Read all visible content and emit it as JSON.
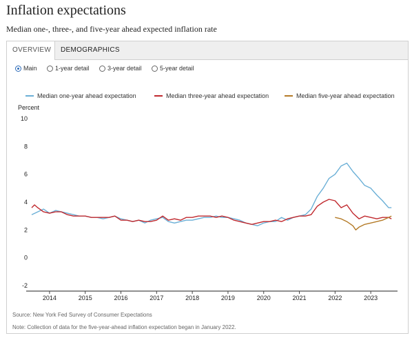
{
  "header": {
    "title": "Inflation expectations",
    "subtitle": "Median one-, three-, and five-year ahead expected inflation rate"
  },
  "tabs": [
    {
      "label": "OVERVIEW",
      "active": true
    },
    {
      "label": "DEMOGRAPHICS",
      "active": false
    }
  ],
  "radios": [
    {
      "label": "Main",
      "selected": true
    },
    {
      "label": "1-year detail",
      "selected": false
    },
    {
      "label": "3-year detail",
      "selected": false
    },
    {
      "label": "5-year detail",
      "selected": false
    }
  ],
  "colors": {
    "one_year": "#6aafd6",
    "three_year": "#c0282d",
    "five_year": "#b47a26",
    "zero_line": "#222222",
    "tab_accent": "#2a6ab8"
  },
  "footer": {
    "source": "Source: New York Fed Survey of Consumer Expectations",
    "note": "Note: Collection of data for the five-year-ahead inflation expectation began in January 2022."
  },
  "chart_data": {
    "type": "line",
    "ylabel": "Percent",
    "ylim": [
      -2,
      10
    ],
    "yticks": [
      -2,
      0,
      2,
      4,
      6,
      8,
      10
    ],
    "xlim": [
      2013.5,
      2023.75
    ],
    "xticks": [
      2014,
      2015,
      2016,
      2017,
      2018,
      2019,
      2020,
      2021,
      2022,
      2023
    ],
    "grid": false,
    "legend_position": "top",
    "series": [
      {
        "name": "Median one-year ahead expectation",
        "color_key": "one_year",
        "points": [
          [
            2013.5,
            3.1
          ],
          [
            2013.67,
            3.3
          ],
          [
            2013.83,
            3.5
          ],
          [
            2014.0,
            3.2
          ],
          [
            2014.17,
            3.4
          ],
          [
            2014.33,
            3.3
          ],
          [
            2014.5,
            3.2
          ],
          [
            2014.67,
            3.1
          ],
          [
            2014.83,
            3.0
          ],
          [
            2015.0,
            3.0
          ],
          [
            2015.17,
            2.9
          ],
          [
            2015.33,
            2.9
          ],
          [
            2015.5,
            2.8
          ],
          [
            2015.67,
            2.9
          ],
          [
            2015.83,
            3.0
          ],
          [
            2016.0,
            2.8
          ],
          [
            2016.17,
            2.7
          ],
          [
            2016.33,
            2.6
          ],
          [
            2016.5,
            2.7
          ],
          [
            2016.67,
            2.5
          ],
          [
            2016.83,
            2.7
          ],
          [
            2017.0,
            2.8
          ],
          [
            2017.17,
            2.9
          ],
          [
            2017.33,
            2.6
          ],
          [
            2017.5,
            2.5
          ],
          [
            2017.67,
            2.6
          ],
          [
            2017.83,
            2.7
          ],
          [
            2018.0,
            2.7
          ],
          [
            2018.17,
            2.8
          ],
          [
            2018.33,
            2.9
          ],
          [
            2018.5,
            2.9
          ],
          [
            2018.67,
            3.0
          ],
          [
            2018.83,
            2.9
          ],
          [
            2019.0,
            2.9
          ],
          [
            2019.17,
            2.8
          ],
          [
            2019.33,
            2.7
          ],
          [
            2019.5,
            2.5
          ],
          [
            2019.67,
            2.4
          ],
          [
            2019.83,
            2.3
          ],
          [
            2020.0,
            2.5
          ],
          [
            2020.17,
            2.6
          ],
          [
            2020.33,
            2.6
          ],
          [
            2020.5,
            2.9
          ],
          [
            2020.67,
            2.7
          ],
          [
            2020.83,
            2.9
          ],
          [
            2021.0,
            3.0
          ],
          [
            2021.17,
            3.1
          ],
          [
            2021.33,
            3.5
          ],
          [
            2021.5,
            4.4
          ],
          [
            2021.67,
            5.0
          ],
          [
            2021.83,
            5.7
          ],
          [
            2022.0,
            6.0
          ],
          [
            2022.17,
            6.6
          ],
          [
            2022.33,
            6.8
          ],
          [
            2022.5,
            6.2
          ],
          [
            2022.67,
            5.7
          ],
          [
            2022.83,
            5.2
          ],
          [
            2023.0,
            5.0
          ],
          [
            2023.17,
            4.5
          ],
          [
            2023.33,
            4.1
          ],
          [
            2023.5,
            3.6
          ],
          [
            2023.58,
            3.6
          ]
        ]
      },
      {
        "name": "Median three-year ahead expectation",
        "color_key": "three_year",
        "points": [
          [
            2013.5,
            3.6
          ],
          [
            2013.58,
            3.8
          ],
          [
            2013.67,
            3.6
          ],
          [
            2013.83,
            3.3
          ],
          [
            2014.0,
            3.2
          ],
          [
            2014.17,
            3.3
          ],
          [
            2014.33,
            3.3
          ],
          [
            2014.5,
            3.1
          ],
          [
            2014.67,
            3.0
          ],
          [
            2014.83,
            3.0
          ],
          [
            2015.0,
            3.0
          ],
          [
            2015.17,
            2.9
          ],
          [
            2015.33,
            2.9
          ],
          [
            2015.5,
            2.9
          ],
          [
            2015.67,
            2.9
          ],
          [
            2015.83,
            3.0
          ],
          [
            2016.0,
            2.7
          ],
          [
            2016.17,
            2.7
          ],
          [
            2016.33,
            2.6
          ],
          [
            2016.5,
            2.7
          ],
          [
            2016.67,
            2.6
          ],
          [
            2016.83,
            2.6
          ],
          [
            2017.0,
            2.7
          ],
          [
            2017.17,
            3.0
          ],
          [
            2017.33,
            2.7
          ],
          [
            2017.5,
            2.8
          ],
          [
            2017.67,
            2.7
          ],
          [
            2017.83,
            2.9
          ],
          [
            2018.0,
            2.9
          ],
          [
            2018.17,
            3.0
          ],
          [
            2018.33,
            3.0
          ],
          [
            2018.5,
            3.0
          ],
          [
            2018.67,
            2.9
          ],
          [
            2018.83,
            3.0
          ],
          [
            2019.0,
            2.9
          ],
          [
            2019.17,
            2.7
          ],
          [
            2019.33,
            2.6
          ],
          [
            2019.5,
            2.5
          ],
          [
            2019.67,
            2.4
          ],
          [
            2019.83,
            2.5
          ],
          [
            2020.0,
            2.6
          ],
          [
            2020.17,
            2.6
          ],
          [
            2020.33,
            2.7
          ],
          [
            2020.5,
            2.6
          ],
          [
            2020.67,
            2.8
          ],
          [
            2020.83,
            2.9
          ],
          [
            2021.0,
            3.0
          ],
          [
            2021.17,
            3.0
          ],
          [
            2021.33,
            3.1
          ],
          [
            2021.5,
            3.7
          ],
          [
            2021.67,
            4.0
          ],
          [
            2021.83,
            4.2
          ],
          [
            2022.0,
            4.1
          ],
          [
            2022.17,
            3.6
          ],
          [
            2022.33,
            3.8
          ],
          [
            2022.5,
            3.2
          ],
          [
            2022.67,
            2.8
          ],
          [
            2022.83,
            3.0
          ],
          [
            2023.0,
            2.9
          ],
          [
            2023.17,
            2.8
          ],
          [
            2023.33,
            2.9
          ],
          [
            2023.5,
            2.9
          ],
          [
            2023.58,
            2.8
          ]
        ]
      },
      {
        "name": "Median five-year ahead expectation",
        "color_key": "five_year",
        "points": [
          [
            2022.0,
            2.9
          ],
          [
            2022.17,
            2.8
          ],
          [
            2022.33,
            2.6
          ],
          [
            2022.5,
            2.3
          ],
          [
            2022.58,
            2.0
          ],
          [
            2022.67,
            2.2
          ],
          [
            2022.83,
            2.4
          ],
          [
            2023.0,
            2.5
          ],
          [
            2023.17,
            2.6
          ],
          [
            2023.33,
            2.7
          ],
          [
            2023.5,
            2.9
          ],
          [
            2023.58,
            3.0
          ]
        ]
      }
    ]
  }
}
